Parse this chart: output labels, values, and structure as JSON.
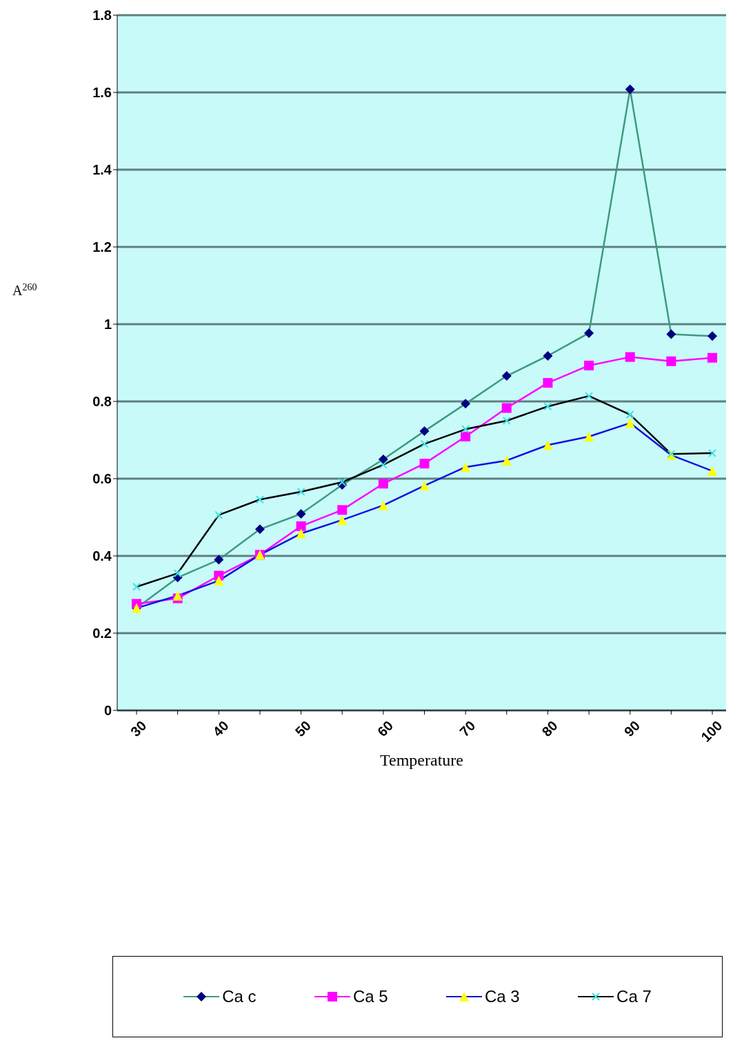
{
  "chart_data": {
    "type": "line",
    "xlabel": "Temperature",
    "ylabel": "A$^{260}$",
    "categories": [
      "30",
      null,
      "40",
      null,
      "50",
      null,
      "60",
      null,
      "70",
      null,
      "80",
      null,
      "90",
      null,
      "100"
    ],
    "series": [
      {
        "name": "Ca c",
        "color": "#3d9b7d",
        "marker": "diamond",
        "values": [
          0.265,
          0.344,
          0.39,
          0.469,
          0.509,
          0.584,
          0.65,
          0.723,
          0.794,
          0.866,
          0.918,
          0.977,
          1.608,
          0.974,
          0.969
        ]
      },
      {
        "name": "Ca 5",
        "color": "#ff00ff",
        "marker": "square",
        "values": [
          0.276,
          0.29,
          0.349,
          0.403,
          0.477,
          0.519,
          0.587,
          0.639,
          0.709,
          0.783,
          0.848,
          0.893,
          0.915,
          0.904,
          0.913
        ]
      },
      {
        "name": "Ca 3",
        "color": "#1010e0",
        "marker": "triangle",
        "values": [
          0.265,
          0.297,
          0.336,
          0.403,
          0.458,
          0.493,
          0.531,
          0.582,
          0.63,
          0.647,
          0.687,
          0.709,
          0.744,
          0.661,
          0.62
        ]
      },
      {
        "name": "Ca 7",
        "color": "#000000",
        "marker": "cross",
        "values": [
          0.32,
          0.355,
          0.506,
          0.546,
          0.566,
          0.591,
          0.636,
          0.69,
          0.728,
          0.75,
          0.787,
          0.814,
          0.766,
          0.664,
          0.666
        ]
      }
    ],
    "ylim": [
      0,
      1.8
    ],
    "yticks": [
      0,
      0.2,
      0.4,
      0.6,
      0.8,
      1,
      1.2,
      1.4,
      1.6,
      1.8
    ],
    "grid": "y",
    "legend": "bottom"
  }
}
